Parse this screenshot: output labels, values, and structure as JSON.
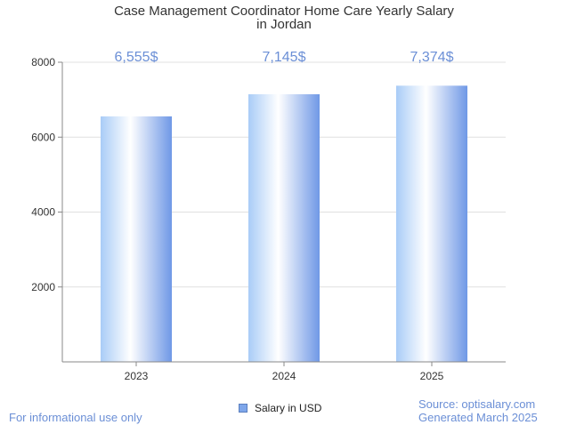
{
  "title_line1": "Case Management Coordinator Home Care Yearly Salary",
  "title_line2": "in Jordan",
  "chart_data": {
    "type": "bar",
    "categories": [
      "2023",
      "2024",
      "2025"
    ],
    "series": [
      {
        "name": "Salary in USD",
        "values": [
          6555,
          7145,
          7374
        ]
      }
    ],
    "data_labels": [
      "6,555$",
      "7,145$",
      "7,374$"
    ],
    "yticks": [
      "2000",
      "4000",
      "6000",
      "8000"
    ],
    "ylim": [
      0,
      8000
    ],
    "grid": true,
    "legend_position": "bottom-center"
  },
  "legend": {
    "label": "Salary in USD"
  },
  "footer": {
    "disclaimer": "For informational use only",
    "source": "Source: optisalary.com",
    "generated": "Generated March 2025"
  },
  "colors": {
    "bar_light": "#ffffff",
    "bar_mid": "#a9ccf7",
    "bar_dark": "#6f98e6",
    "label": "#6b8fd6",
    "grid": "#e0e0e0",
    "axis": "#888888"
  }
}
